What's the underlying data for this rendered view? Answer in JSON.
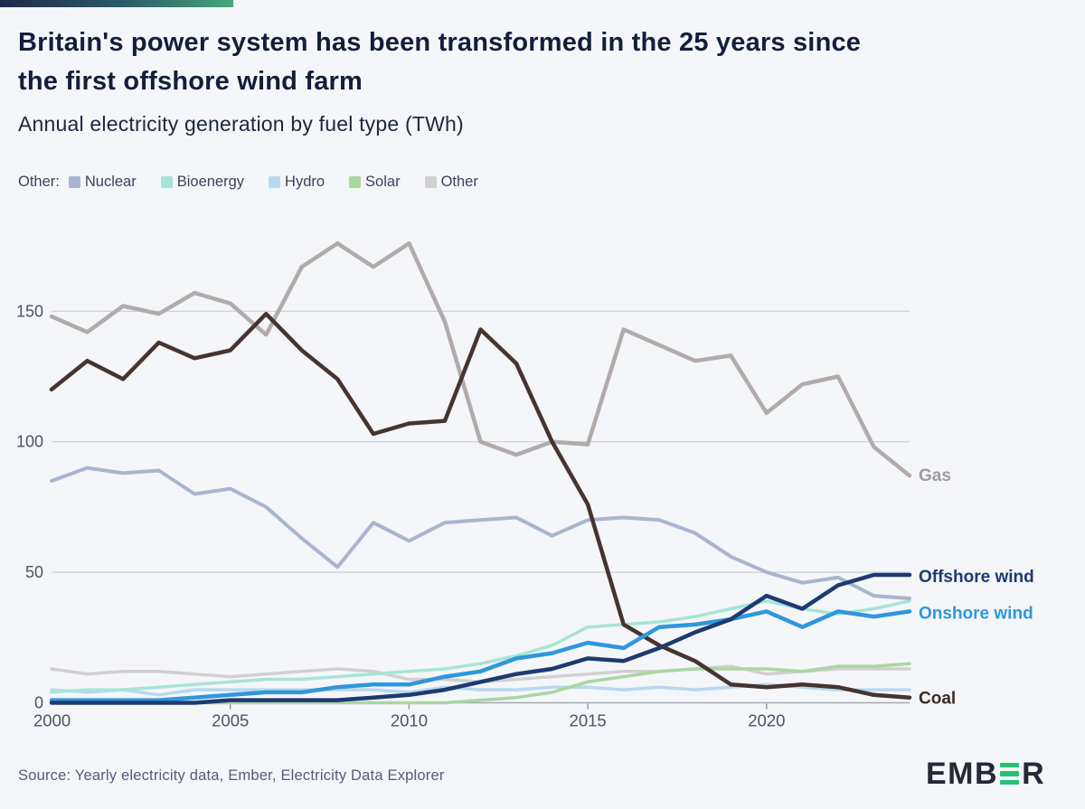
{
  "header": {
    "title_line1": "Britain's power system has been transformed in the 25 years since",
    "title_line2": "the first offshore wind farm",
    "subtitle": "Annual electricity generation by fuel type (TWh)"
  },
  "legend": {
    "prefix": "Other:",
    "items": [
      {
        "label": "Nuclear",
        "color": "#a9b5ce"
      },
      {
        "label": "Bioenergy",
        "color": "#a6e4d7"
      },
      {
        "label": "Hydro",
        "color": "#b7d8f1"
      },
      {
        "label": "Solar",
        "color": "#a9d7a1"
      },
      {
        "label": "Other",
        "color": "#d1d0d0"
      }
    ]
  },
  "footer": {
    "source": "Source: Yearly electricity data, Ember, Electricity Data Explorer",
    "logo_prefix": "EMB",
    "logo_suffix": "R",
    "logo_green": "#27c175",
    "logo_dark": "#232a35"
  },
  "chart_data": {
    "type": "line",
    "unit": "TWh",
    "x": [
      2000,
      2001,
      2002,
      2003,
      2004,
      2005,
      2006,
      2007,
      2008,
      2009,
      2010,
      2011,
      2012,
      2013,
      2014,
      2015,
      2016,
      2017,
      2018,
      2019,
      2020,
      2021,
      2022,
      2023,
      2024
    ],
    "x_ticks": [
      2000,
      2005,
      2010,
      2015,
      2020
    ],
    "y_ticks": [
      0,
      50,
      100,
      150
    ],
    "ylim": [
      0,
      190
    ],
    "grid": "horizontal",
    "colors": {
      "grid": "#c9ceda",
      "axis": "#a3aab6",
      "tick": "#8d95a3",
      "tick_text": "#4b5568"
    },
    "series": [
      {
        "name": "Other",
        "color": "#d1d0d0",
        "width": 3.5,
        "values": [
          13,
          11,
          12,
          12,
          11,
          10,
          11,
          12,
          13,
          12,
          9,
          9,
          8,
          9,
          10,
          11,
          12,
          12,
          13,
          14,
          11,
          12,
          13,
          13,
          13
        ]
      },
      {
        "name": "Hydro",
        "color": "#b7d8f1",
        "width": 3.5,
        "values": [
          5,
          4,
          5,
          3,
          5,
          5,
          5,
          5,
          5,
          5,
          4,
          6,
          5,
          5,
          6,
          6,
          5,
          6,
          5,
          6,
          7,
          6,
          5,
          5,
          5
        ]
      },
      {
        "name": "Solar",
        "color": "#a9d7a1",
        "width": 3.5,
        "values": [
          0,
          0,
          0,
          0,
          0,
          0,
          0,
          0,
          0,
          0,
          0,
          0,
          1,
          2,
          4,
          8,
          10,
          12,
          13,
          13,
          13,
          12,
          14,
          14,
          15
        ]
      },
      {
        "name": "Bioenergy",
        "color": "#a6e4d7",
        "width": 3.5,
        "values": [
          4,
          5,
          5,
          6,
          7,
          8,
          9,
          9,
          10,
          11,
          12,
          13,
          15,
          18,
          22,
          29,
          30,
          31,
          33,
          36,
          39,
          36,
          34,
          36,
          39
        ]
      },
      {
        "name": "Nuclear",
        "color": "#a9b5ce",
        "width": 4,
        "values": [
          85,
          90,
          88,
          89,
          80,
          82,
          75,
          63,
          52,
          69,
          62,
          69,
          70,
          71,
          64,
          70,
          71,
          70,
          65,
          56,
          50,
          46,
          48,
          41,
          40
        ]
      },
      {
        "name": "Gas",
        "color": "#b2abaa",
        "width": 4.5,
        "end_label": "Gas",
        "label_color": "#a29b9a",
        "label_dy": 6,
        "values": [
          148,
          142,
          152,
          149,
          157,
          153,
          141,
          167,
          176,
          167,
          176,
          146,
          100,
          95,
          100,
          99,
          143,
          137,
          131,
          133,
          111,
          122,
          125,
          98,
          87
        ]
      },
      {
        "name": "Coal",
        "color": "#463430",
        "width": 4.5,
        "end_label": "Coal",
        "label_color": "#3a2b26",
        "label_dy": 7,
        "values": [
          120,
          131,
          124,
          138,
          132,
          135,
          149,
          135,
          124,
          103,
          107,
          108,
          143,
          130,
          100,
          76,
          30,
          22,
          16,
          7,
          6,
          7,
          6,
          3,
          2
        ]
      },
      {
        "name": "Onshore wind",
        "color": "#2f97dc",
        "width": 4.5,
        "end_label": "Onshore wind",
        "label_color": "#2f97dc",
        "label_dy": 8,
        "values": [
          1,
          1,
          1,
          1,
          2,
          3,
          4,
          4,
          6,
          7,
          7,
          10,
          12,
          17,
          19,
          23,
          21,
          29,
          30,
          32,
          35,
          29,
          35,
          33,
          35
        ]
      },
      {
        "name": "Offshore wind",
        "color": "#1d3a70",
        "width": 4.5,
        "end_label": "Offshore wind",
        "label_color": "#1d3a70",
        "label_dy": 8,
        "values": [
          0,
          0,
          0,
          0,
          0,
          1,
          1,
          1,
          1,
          2,
          3,
          5,
          8,
          11,
          13,
          17,
          16,
          21,
          27,
          32,
          41,
          36,
          45,
          49,
          49
        ]
      }
    ]
  }
}
